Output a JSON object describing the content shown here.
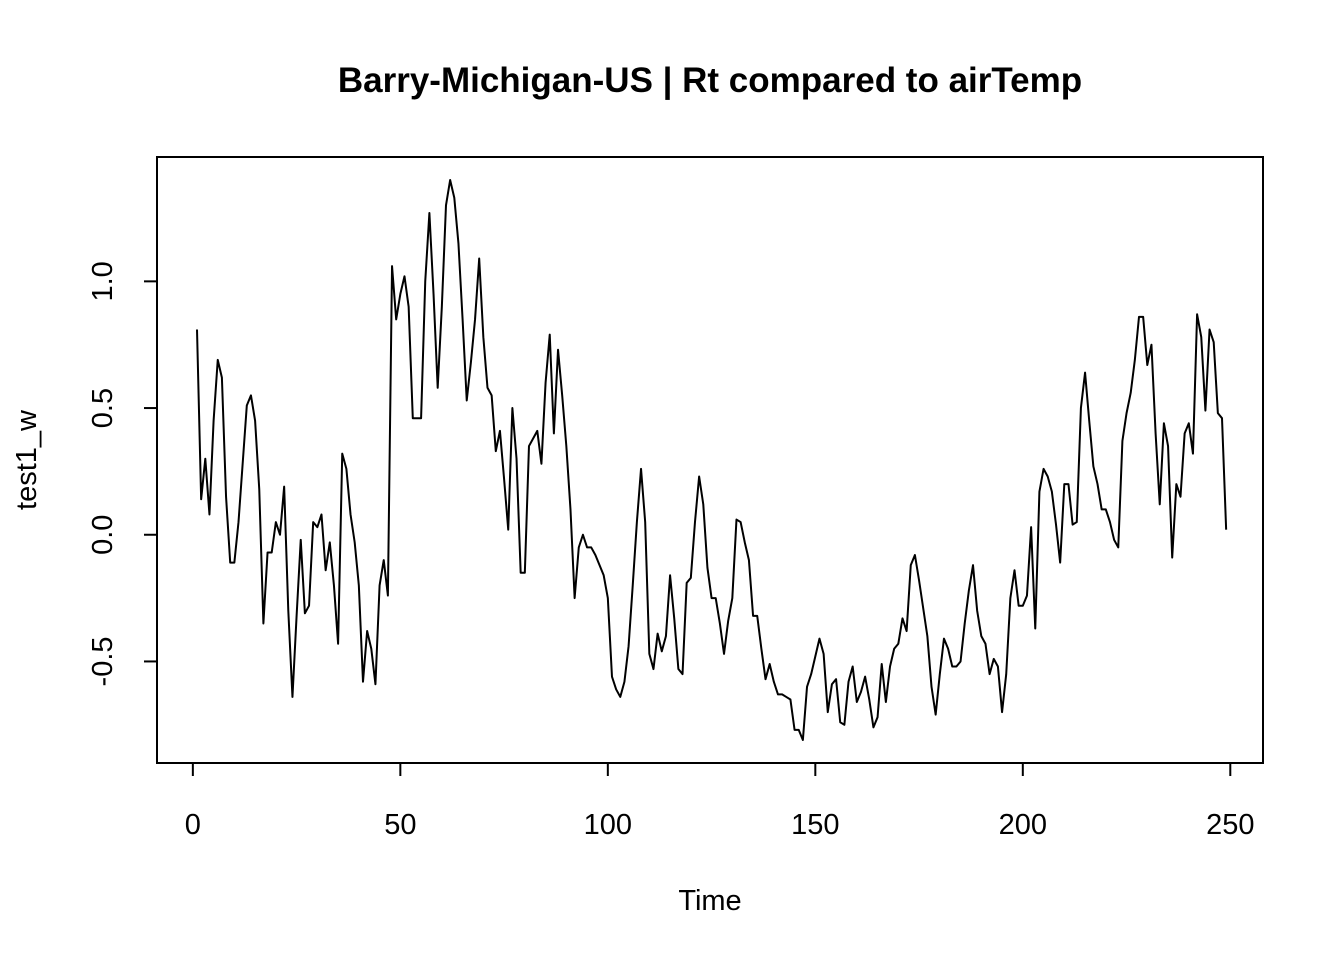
{
  "chart_data": {
    "type": "line",
    "title": "Barry-Michigan-US | Rt compared to airTemp",
    "xlabel": "Time",
    "ylabel": "test1_w",
    "xlim": [
      1,
      248
    ],
    "ylim": [
      -0.81,
      1.4
    ],
    "x_ticks": [
      0,
      50,
      100,
      150,
      200,
      250
    ],
    "x_tick_labels": [
      "0",
      "50",
      "100",
      "150",
      "200",
      "250"
    ],
    "y_ticks": [
      -0.5,
      0.0,
      0.5,
      1.0
    ],
    "y_tick_labels": [
      "-0.5",
      "0.0",
      "0.5",
      "1.0"
    ],
    "grid": false,
    "legend": "none",
    "line_color": "#000000",
    "series": [
      {
        "x_start": 1,
        "x_step": 1,
        "values": [
          0.81,
          0.14,
          0.3,
          0.08,
          0.45,
          0.69,
          0.62,
          0.15,
          -0.11,
          -0.11,
          0.05,
          0.28,
          0.51,
          0.55,
          0.45,
          0.18,
          -0.35,
          -0.07,
          -0.07,
          0.05,
          0.0,
          0.19,
          -0.3,
          -0.64,
          -0.32,
          -0.02,
          -0.31,
          -0.28,
          0.05,
          0.03,
          0.08,
          -0.14,
          -0.03,
          -0.2,
          -0.43,
          0.32,
          0.26,
          0.08,
          -0.03,
          -0.2,
          -0.58,
          -0.38,
          -0.45,
          -0.59,
          -0.2,
          -0.1,
          -0.24,
          1.06,
          0.85,
          0.95,
          1.02,
          0.9,
          0.46,
          0.46,
          0.46,
          1.0,
          1.27,
          0.95,
          0.58,
          0.9,
          1.3,
          1.4,
          1.33,
          1.15,
          0.85,
          0.53,
          0.68,
          0.85,
          1.09,
          0.78,
          0.58,
          0.55,
          0.33,
          0.41,
          0.22,
          0.02,
          0.5,
          0.3,
          -0.15,
          -0.15,
          0.35,
          0.38,
          0.41,
          0.28,
          0.6,
          0.79,
          0.4,
          0.73,
          0.55,
          0.35,
          0.1,
          -0.25,
          -0.05,
          0.0,
          -0.05,
          -0.05,
          -0.08,
          -0.12,
          -0.16,
          -0.25,
          -0.56,
          -0.61,
          -0.64,
          -0.58,
          -0.44,
          -0.2,
          0.05,
          0.26,
          0.05,
          -0.47,
          -0.53,
          -0.39,
          -0.46,
          -0.4,
          -0.16,
          -0.33,
          -0.53,
          -0.55,
          -0.19,
          -0.17,
          0.05,
          0.23,
          0.12,
          -0.13,
          -0.25,
          -0.25,
          -0.35,
          -0.47,
          -0.34,
          -0.25,
          0.06,
          0.05,
          -0.03,
          -0.1,
          -0.32,
          -0.32,
          -0.45,
          -0.57,
          -0.51,
          -0.58,
          -0.63,
          -0.63,
          -0.64,
          -0.65,
          -0.77,
          -0.77,
          -0.81,
          -0.6,
          -0.55,
          -0.48,
          -0.41,
          -0.47,
          -0.7,
          -0.59,
          -0.57,
          -0.74,
          -0.75,
          -0.58,
          -0.52,
          -0.66,
          -0.62,
          -0.56,
          -0.65,
          -0.76,
          -0.72,
          -0.51,
          -0.66,
          -0.52,
          -0.45,
          -0.43,
          -0.33,
          -0.38,
          -0.12,
          -0.08,
          -0.18,
          -0.29,
          -0.4,
          -0.6,
          -0.71,
          -0.55,
          -0.41,
          -0.45,
          -0.52,
          -0.52,
          -0.5,
          -0.35,
          -0.22,
          -0.12,
          -0.3,
          -0.4,
          -0.43,
          -0.55,
          -0.49,
          -0.52,
          -0.7,
          -0.55,
          -0.25,
          -0.14,
          -0.28,
          -0.28,
          -0.24,
          0.03,
          -0.37,
          0.17,
          0.26,
          0.23,
          0.17,
          0.04,
          -0.11,
          0.2,
          0.2,
          0.04,
          0.05,
          0.5,
          0.64,
          0.45,
          0.27,
          0.2,
          0.1,
          0.1,
          0.05,
          -0.02,
          -0.05,
          0.37,
          0.48,
          0.56,
          0.69,
          0.86,
          0.86,
          0.67,
          0.75,
          0.4,
          0.12,
          0.44,
          0.35,
          -0.09,
          0.2,
          0.15,
          0.4,
          0.44,
          0.32,
          0.87,
          0.78,
          0.49,
          0.81,
          0.76,
          0.48,
          0.46,
          0.02
        ]
      }
    ]
  }
}
